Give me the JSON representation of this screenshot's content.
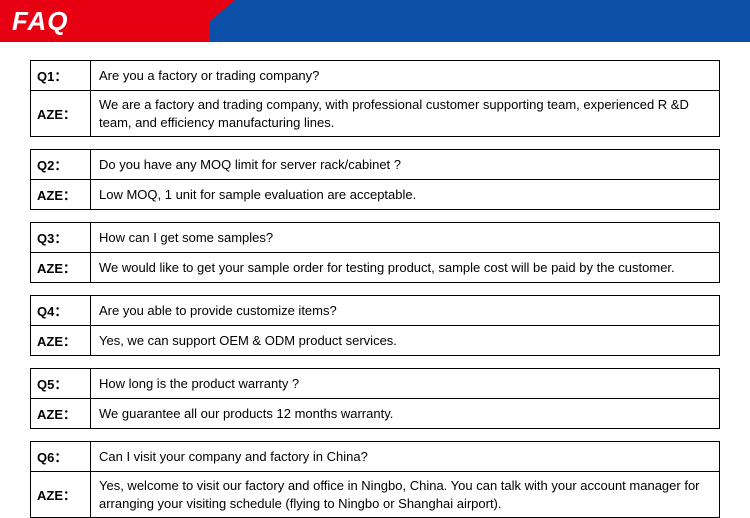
{
  "header": {
    "title": "FAQ",
    "red_color": "#e60012",
    "blue_color": "#0b4fa8",
    "title_color": "#ffffff"
  },
  "answer_label": "AZE：",
  "faqs": [
    {
      "q_label": "Q1：",
      "question": "Are you a factory or trading company?",
      "answer": " We are a factory and trading company, with professional customer supporting team, experienced R &D team, and efficiency manufacturing lines."
    },
    {
      "q_label": "Q2：",
      "question": "Do you have any MOQ limit for server rack/cabinet ?",
      "answer": "Low MOQ, 1 unit for sample evaluation are acceptable."
    },
    {
      "q_label": "Q3：",
      "question": "How can I get some samples?",
      "answer": " We would like to get your sample order for testing product, sample cost will be paid by the customer."
    },
    {
      "q_label": "Q4：",
      "question": "Are you able to provide customize items?",
      "answer": "Yes, we can support OEM & ODM product services."
    },
    {
      "q_label": "Q5：",
      "question": "How long is the product warranty ?",
      "answer": "We guarantee all our products 12 months warranty."
    },
    {
      "q_label": "Q6：",
      "question": "Can I visit your company and factory in China?",
      "answer": "Yes, welcome to visit our factory and office in Ningbo, China. You can talk with your account manager for arranging your visiting schedule (flying to Ningbo or Shanghai airport)."
    }
  ],
  "style": {
    "border_color": "#000000",
    "text_color": "#000000",
    "body_font_size": 13,
    "title_font_size": 26,
    "background": "#ffffff"
  }
}
